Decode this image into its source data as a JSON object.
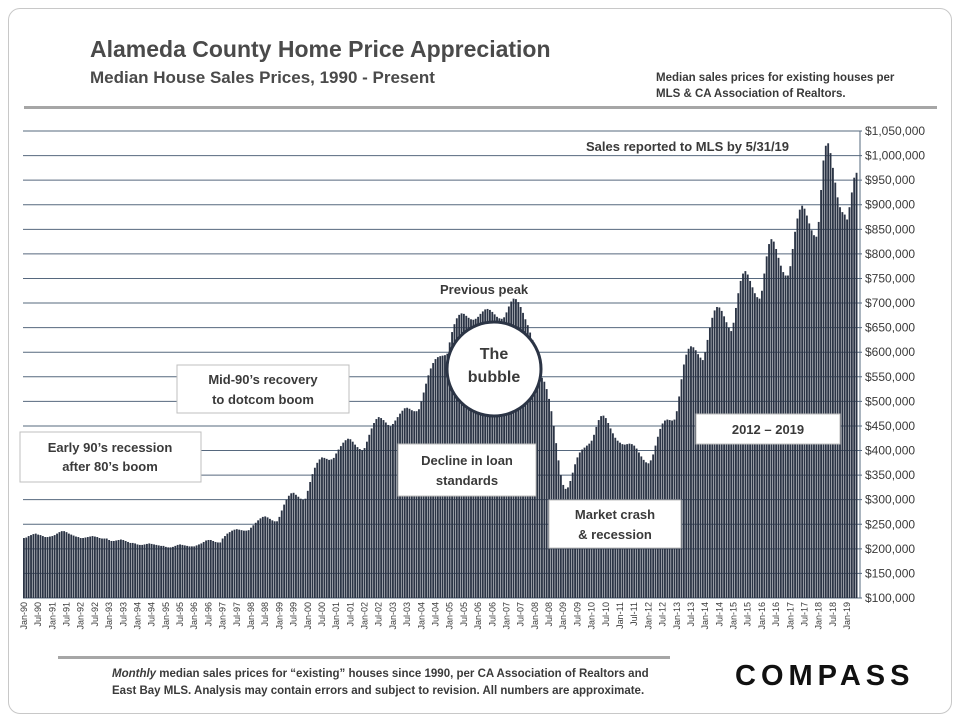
{
  "header": {
    "title": "Alameda County Home Price Appreciation",
    "subtitle": "Median House Sales Prices, 1990 - Present",
    "source_note": "Median sales prices for existing houses per MLS & CA Association of Realtors."
  },
  "footer": {
    "note_emph": "Monthly",
    "note_rest": " median sales prices for “existing” houses since 1990, per CA Association of Realtors and East Bay MLS.  Analysis may contain errors and subject to revision. All numbers are approximate.",
    "brand": "COMPASS"
  },
  "colors": {
    "bar": "#2b3445",
    "grid": "#56687e",
    "text": "#3a3a3a",
    "rule": "#a6a6a6"
  },
  "annotations": {
    "sales_reported": "Sales reported to MLS by 5/31/19",
    "previous_peak": "Previous peak",
    "bubble_line1": "The",
    "bubble_line2": "bubble",
    "early_90s_line1": "Early 90’s recession",
    "early_90s_line2": "after 80’s boom",
    "mid_90s_line1": "Mid-90’s recovery",
    "mid_90s_line2": "to dotcom boom",
    "decline_line1": "Decline in loan",
    "decline_line2": "standards",
    "crash_line1": "Market crash",
    "crash_line2": "& recession",
    "recent": "2012 – 2019"
  },
  "chart_data": {
    "type": "bar",
    "title": "Alameda County Home Price Appreciation",
    "subtitle": "Median House Sales Prices, 1990 - Present",
    "ylim": [
      100000,
      1050000
    ],
    "y_ticks": [
      {
        "value": 100000,
        "label": "$100,000"
      },
      {
        "value": 150000,
        "label": "$150,000"
      },
      {
        "value": 200000,
        "label": "$200,000"
      },
      {
        "value": 250000,
        "label": "$250,000"
      },
      {
        "value": 300000,
        "label": "$300,000"
      },
      {
        "value": 350000,
        "label": "$350,000"
      },
      {
        "value": 400000,
        "label": "$400,000"
      },
      {
        "value": 450000,
        "label": "$450,000"
      },
      {
        "value": 500000,
        "label": "$500,000"
      },
      {
        "value": 550000,
        "label": "$550,000"
      },
      {
        "value": 600000,
        "label": "$600,000"
      },
      {
        "value": 650000,
        "label": "$650,000"
      },
      {
        "value": 700000,
        "label": "$700,000"
      },
      {
        "value": 750000,
        "label": "$750,000"
      },
      {
        "value": 800000,
        "label": "$800,000"
      },
      {
        "value": 850000,
        "label": "$850,000"
      },
      {
        "value": 900000,
        "label": "$900,000"
      },
      {
        "value": 950000,
        "label": "$950,000"
      },
      {
        "value": 1000000,
        "label": "$1,000,000"
      },
      {
        "value": 1050000,
        "label": "$1,050,000"
      }
    ],
    "x_tick_labels": [
      "Jan-90",
      "Jul-90",
      "Jan-91",
      "Jul-91",
      "Jan-92",
      "Jul-92",
      "Jan-93",
      "Jul-93",
      "Jan-94",
      "Jul-94",
      "Jan-95",
      "Jul-95",
      "Jan-96",
      "Jul-96",
      "Jan-97",
      "Jul-97",
      "Jan-98",
      "Jul-98",
      "Jan-99",
      "Jul-99",
      "Jan-00",
      "Jul-00",
      "Jan-01",
      "Jul-01",
      "Jan-02",
      "Jul-02",
      "Jan-03",
      "Jul-03",
      "Jan-04",
      "Jul-04",
      "Jan-05",
      "Jul-05",
      "Jan-06",
      "Jul-06",
      "Jan-07",
      "Jul-07",
      "Jan-08",
      "Jul-08",
      "Jan-09",
      "Jul-09",
      "Jan-10",
      "Jul-10",
      "Jan-11",
      "Jul-11",
      "Jan-12",
      "Jul-12",
      "Jan-13",
      "Jul-13",
      "Jan-14",
      "Jul-14",
      "Jan-15",
      "Jul-15",
      "Jan-16",
      "Jul-16",
      "Jan-17",
      "Jul-17",
      "Jan-18",
      "Jul-18",
      "Jan-19"
    ],
    "x_tick_interval_months": 6,
    "grid": true,
    "values": [
      222000,
      223000,
      226000,
      228000,
      230000,
      231000,
      229000,
      228000,
      226000,
      224000,
      224000,
      225000,
      226000,
      228000,
      231000,
      234000,
      236000,
      236000,
      234000,
      231000,
      229000,
      227000,
      225000,
      224000,
      222000,
      222000,
      223000,
      224000,
      225000,
      226000,
      225000,
      224000,
      222000,
      221000,
      221000,
      221000,
      218000,
      216000,
      216000,
      217000,
      218000,
      219000,
      218000,
      216000,
      214000,
      212000,
      212000,
      211000,
      209000,
      208000,
      208000,
      209000,
      210000,
      211000,
      210000,
      209000,
      208000,
      207000,
      206000,
      206000,
      204000,
      203000,
      203000,
      204000,
      206000,
      208000,
      209000,
      208000,
      207000,
      206000,
      205000,
      205000,
      205000,
      207000,
      209000,
      211000,
      214000,
      217000,
      218000,
      218000,
      216000,
      214000,
      213000,
      213000,
      221000,
      226000,
      231000,
      234000,
      237000,
      239000,
      240000,
      239000,
      238000,
      237000,
      237000,
      238000,
      243000,
      248000,
      253000,
      258000,
      262000,
      265000,
      266000,
      264000,
      261000,
      258000,
      256000,
      256000,
      265000,
      278000,
      290000,
      300000,
      308000,
      313000,
      314000,
      310000,
      306000,
      302000,
      300000,
      302000,
      318000,
      336000,
      352000,
      365000,
      375000,
      382000,
      386000,
      385000,
      383000,
      381000,
      382000,
      385000,
      394000,
      402000,
      409000,
      416000,
      421000,
      424000,
      423000,
      418000,
      412000,
      407000,
      403000,
      401000,
      405000,
      418000,
      432000,
      445000,
      456000,
      464000,
      468000,
      466000,
      462000,
      457000,
      452000,
      449000,
      454000,
      461000,
      468000,
      475000,
      481000,
      486000,
      487000,
      485000,
      482000,
      480000,
      480000,
      484000,
      500000,
      518000,
      536000,
      553000,
      567000,
      578000,
      586000,
      590000,
      592000,
      593000,
      594000,
      597000,
      620000,
      641000,
      657000,
      669000,
      676000,
      679000,
      678000,
      674000,
      670000,
      667000,
      666000,
      668000,
      672000,
      678000,
      683000,
      687000,
      688000,
      686000,
      682000,
      677000,
      672000,
      669000,
      668000,
      671000,
      681000,
      693000,
      703000,
      709000,
      708000,
      702000,
      692000,
      680000,
      667000,
      655000,
      640000,
      625000,
      605000,
      582000,
      562000,
      548000,
      540000,
      525000,
      505000,
      480000,
      450000,
      415000,
      380000,
      350000,
      330000,
      322000,
      325000,
      338000,
      355000,
      372000,
      386000,
      396000,
      402000,
      406000,
      410000,
      414000,
      420000,
      432000,
      448000,
      462000,
      470000,
      471000,
      466000,
      456000,
      445000,
      435000,
      426000,
      420000,
      416000,
      413000,
      412000,
      413000,
      414000,
      413000,
      410000,
      404000,
      396000,
      388000,
      381000,
      376000,
      374000,
      380000,
      392000,
      410000,
      428000,
      444000,
      455000,
      461000,
      463000,
      462000,
      461000,
      463000,
      480000,
      510000,
      545000,
      575000,
      595000,
      607000,
      612000,
      610000,
      604000,
      596000,
      589000,
      584000,
      600000,
      625000,
      650000,
      670000,
      685000,
      692000,
      691000,
      684000,
      673000,
      661000,
      650000,
      643000,
      660000,
      690000,
      720000,
      745000,
      760000,
      765000,
      758000,
      745000,
      732000,
      720000,
      712000,
      709000,
      725000,
      760000,
      795000,
      820000,
      830000,
      825000,
      810000,
      792000,
      776000,
      763000,
      756000,
      756000,
      775000,
      810000,
      845000,
      872000,
      890000,
      898000,
      892000,
      878000,
      862000,
      848000,
      838000,
      835000,
      865000,
      930000,
      990000,
      1020000,
      1025000,
      1005000,
      975000,
      945000,
      915000,
      895000,
      885000,
      880000,
      870000,
      895000,
      925000,
      955000,
      965000
    ],
    "series_start": "Jan-90"
  }
}
